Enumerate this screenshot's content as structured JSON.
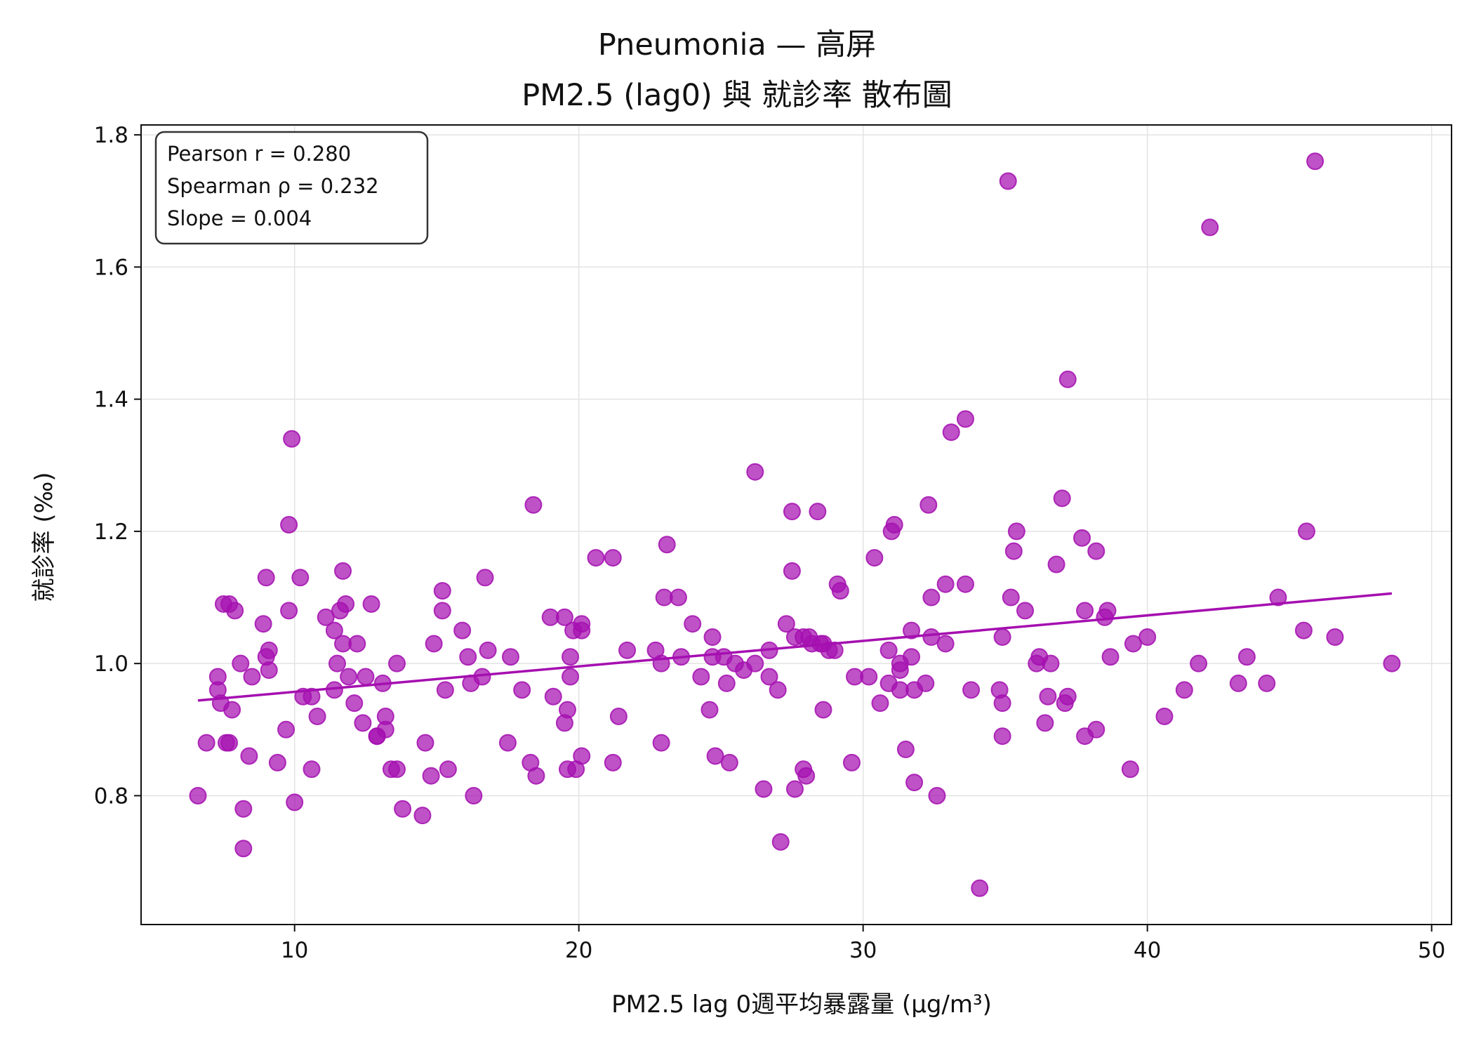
{
  "chart_data": {
    "type": "scatter",
    "title_lines": [
      "Pneumonia — 高屏",
      "PM2.5 (lag0) 與 就診率 散布圖"
    ],
    "xlabel": "PM2.5 lag 0週平均暴露量 (μg/m³)",
    "ylabel": "就診率 (‰)",
    "xlim": [
      4.6,
      50.7
    ],
    "ylim": [
      0.605,
      1.815
    ],
    "xticks": [
      10,
      20,
      30,
      40,
      50
    ],
    "yticks": [
      0.8,
      1.0,
      1.2,
      1.4,
      1.6,
      1.8
    ],
    "ytick_labels": [
      "0.8",
      "1.0",
      "1.2",
      "1.4",
      "1.6",
      "1.8"
    ],
    "grid": true,
    "colors": {
      "points": "#a50fb0",
      "trend": "#a50fb0",
      "frame": "#111111",
      "grid": "#e3e3e3"
    },
    "stats": [
      "Pearson r = 0.280",
      "Spearman ρ = 0.232",
      "Slope = 0.004"
    ],
    "stats_placement": "top-left",
    "trendline": {
      "x": [
        6.6,
        48.6
      ],
      "y": [
        0.944,
        1.106
      ]
    },
    "points": [
      [
        6.6,
        0.8
      ],
      [
        6.9,
        0.88
      ],
      [
        7.3,
        0.98
      ],
      [
        7.3,
        0.96
      ],
      [
        7.4,
        0.94
      ],
      [
        7.5,
        1.09
      ],
      [
        7.6,
        0.88
      ],
      [
        7.7,
        0.88
      ],
      [
        7.7,
        1.09
      ],
      [
        7.8,
        0.93
      ],
      [
        7.9,
        1.08
      ],
      [
        8.1,
        1.0
      ],
      [
        8.2,
        0.78
      ],
      [
        8.2,
        0.72
      ],
      [
        8.4,
        0.86
      ],
      [
        8.5,
        0.98
      ],
      [
        8.9,
        1.06
      ],
      [
        9.0,
        1.13
      ],
      [
        9.0,
        1.01
      ],
      [
        9.1,
        0.99
      ],
      [
        9.1,
        1.02
      ],
      [
        9.4,
        0.85
      ],
      [
        9.7,
        0.9
      ],
      [
        9.8,
        1.21
      ],
      [
        9.8,
        1.08
      ],
      [
        9.9,
        1.34
      ],
      [
        10.0,
        0.79
      ],
      [
        10.2,
        1.13
      ],
      [
        10.3,
        0.95
      ],
      [
        10.6,
        0.95
      ],
      [
        10.6,
        0.84
      ],
      [
        10.8,
        0.92
      ],
      [
        11.1,
        1.07
      ],
      [
        11.4,
        0.96
      ],
      [
        11.4,
        1.05
      ],
      [
        11.5,
        1.0
      ],
      [
        11.6,
        1.08
      ],
      [
        11.7,
        1.14
      ],
      [
        11.7,
        1.03
      ],
      [
        11.8,
        1.09
      ],
      [
        11.9,
        0.98
      ],
      [
        12.1,
        0.94
      ],
      [
        12.2,
        1.03
      ],
      [
        12.4,
        0.91
      ],
      [
        12.5,
        0.98
      ],
      [
        12.7,
        1.09
      ],
      [
        12.9,
        0.89
      ],
      [
        12.9,
        0.89
      ],
      [
        13.1,
        0.97
      ],
      [
        13.2,
        0.9
      ],
      [
        13.2,
        0.92
      ],
      [
        13.4,
        0.84
      ],
      [
        13.6,
        0.84
      ],
      [
        13.6,
        1.0
      ],
      [
        13.8,
        0.78
      ],
      [
        14.5,
        0.77
      ],
      [
        14.6,
        0.88
      ],
      [
        14.8,
        0.83
      ],
      [
        14.9,
        1.03
      ],
      [
        15.2,
        1.11
      ],
      [
        15.2,
        1.08
      ],
      [
        15.3,
        0.96
      ],
      [
        15.4,
        0.84
      ],
      [
        15.9,
        1.05
      ],
      [
        16.1,
        1.01
      ],
      [
        16.2,
        0.97
      ],
      [
        16.3,
        0.8
      ],
      [
        16.6,
        0.98
      ],
      [
        16.7,
        1.13
      ],
      [
        16.8,
        1.02
      ],
      [
        17.5,
        0.88
      ],
      [
        17.6,
        1.01
      ],
      [
        18.0,
        0.96
      ],
      [
        18.3,
        0.85
      ],
      [
        18.4,
        1.24
      ],
      [
        18.5,
        0.83
      ],
      [
        19.0,
        1.07
      ],
      [
        19.1,
        0.95
      ],
      [
        19.5,
        1.07
      ],
      [
        19.5,
        0.91
      ],
      [
        19.6,
        0.93
      ],
      [
        19.6,
        0.84
      ],
      [
        19.7,
        0.98
      ],
      [
        19.7,
        1.01
      ],
      [
        19.8,
        1.05
      ],
      [
        19.9,
        0.84
      ],
      [
        20.1,
        1.06
      ],
      [
        20.1,
        1.05
      ],
      [
        20.1,
        0.86
      ],
      [
        20.6,
        1.16
      ],
      [
        21.2,
        1.16
      ],
      [
        21.2,
        0.85
      ],
      [
        21.4,
        0.92
      ],
      [
        21.7,
        1.02
      ],
      [
        22.7,
        1.02
      ],
      [
        22.9,
        1.0
      ],
      [
        22.9,
        0.88
      ],
      [
        23.0,
        1.1
      ],
      [
        23.1,
        1.18
      ],
      [
        23.5,
        1.1
      ],
      [
        23.6,
        1.01
      ],
      [
        24.0,
        1.06
      ],
      [
        24.3,
        0.98
      ],
      [
        24.6,
        0.93
      ],
      [
        24.7,
        1.04
      ],
      [
        24.7,
        1.01
      ],
      [
        24.8,
        0.86
      ],
      [
        25.1,
        1.01
      ],
      [
        25.2,
        0.97
      ],
      [
        25.3,
        0.85
      ],
      [
        25.5,
        1.0
      ],
      [
        25.8,
        0.99
      ],
      [
        26.2,
        1.29
      ],
      [
        26.2,
        1.0
      ],
      [
        26.5,
        0.81
      ],
      [
        26.7,
        1.02
      ],
      [
        26.7,
        0.98
      ],
      [
        27.0,
        0.96
      ],
      [
        27.1,
        0.73
      ],
      [
        27.3,
        1.06
      ],
      [
        27.5,
        1.23
      ],
      [
        27.5,
        1.14
      ],
      [
        27.6,
        1.04
      ],
      [
        27.6,
        0.81
      ],
      [
        27.9,
        1.04
      ],
      [
        27.9,
        0.84
      ],
      [
        28.0,
        0.83
      ],
      [
        28.1,
        1.04
      ],
      [
        28.2,
        1.03
      ],
      [
        28.4,
        1.23
      ],
      [
        28.5,
        1.03
      ],
      [
        28.6,
        0.93
      ],
      [
        28.6,
        1.03
      ],
      [
        28.8,
        1.02
      ],
      [
        29.0,
        1.02
      ],
      [
        29.1,
        1.12
      ],
      [
        29.2,
        1.11
      ],
      [
        29.6,
        0.85
      ],
      [
        29.7,
        0.98
      ],
      [
        30.2,
        0.98
      ],
      [
        30.4,
        1.16
      ],
      [
        30.6,
        0.94
      ],
      [
        30.9,
        0.97
      ],
      [
        30.9,
        1.02
      ],
      [
        31.0,
        1.2
      ],
      [
        31.1,
        1.21
      ],
      [
        31.3,
        0.99
      ],
      [
        31.3,
        1.0
      ],
      [
        31.3,
        0.96
      ],
      [
        31.5,
        0.87
      ],
      [
        31.7,
        1.05
      ],
      [
        31.7,
        1.01
      ],
      [
        31.8,
        0.82
      ],
      [
        31.8,
        0.96
      ],
      [
        32.2,
        0.97
      ],
      [
        32.3,
        1.24
      ],
      [
        32.4,
        1.1
      ],
      [
        32.4,
        1.04
      ],
      [
        32.6,
        0.8
      ],
      [
        32.9,
        1.03
      ],
      [
        32.9,
        1.12
      ],
      [
        33.1,
        1.35
      ],
      [
        33.6,
        1.37
      ],
      [
        33.6,
        1.12
      ],
      [
        33.8,
        0.96
      ],
      [
        34.1,
        0.66
      ],
      [
        34.8,
        0.96
      ],
      [
        34.9,
        1.04
      ],
      [
        34.9,
        0.94
      ],
      [
        34.9,
        0.89
      ],
      [
        35.1,
        1.73
      ],
      [
        35.2,
        1.1
      ],
      [
        35.3,
        1.17
      ],
      [
        35.4,
        1.2
      ],
      [
        35.7,
        1.08
      ],
      [
        36.1,
        1.0
      ],
      [
        36.2,
        1.01
      ],
      [
        36.4,
        0.91
      ],
      [
        36.5,
        0.95
      ],
      [
        36.6,
        1.0
      ],
      [
        36.8,
        1.15
      ],
      [
        37.0,
        1.25
      ],
      [
        37.1,
        0.94
      ],
      [
        37.2,
        0.95
      ],
      [
        37.2,
        1.43
      ],
      [
        37.7,
        1.19
      ],
      [
        37.8,
        1.08
      ],
      [
        37.8,
        0.89
      ],
      [
        38.2,
        1.17
      ],
      [
        38.2,
        0.9
      ],
      [
        38.5,
        1.07
      ],
      [
        38.6,
        1.08
      ],
      [
        38.7,
        1.01
      ],
      [
        39.4,
        0.84
      ],
      [
        39.5,
        1.03
      ],
      [
        40.0,
        1.04
      ],
      [
        40.6,
        0.92
      ],
      [
        41.3,
        0.96
      ],
      [
        41.8,
        1.0
      ],
      [
        42.2,
        1.66
      ],
      [
        43.2,
        0.97
      ],
      [
        43.5,
        1.01
      ],
      [
        44.2,
        0.97
      ],
      [
        44.6,
        1.1
      ],
      [
        45.5,
        1.05
      ],
      [
        45.6,
        1.2
      ],
      [
        45.9,
        1.76
      ],
      [
        46.6,
        1.04
      ],
      [
        48.6,
        1.0
      ]
    ]
  }
}
